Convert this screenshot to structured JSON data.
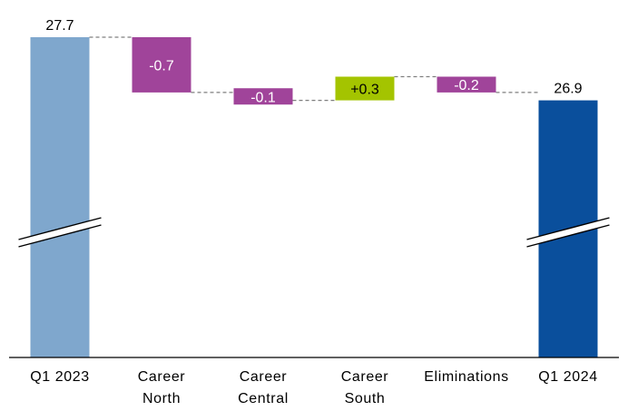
{
  "chart_data": {
    "type": "waterfall",
    "title": "",
    "xlabel": "",
    "ylabel": "",
    "axis_break": true,
    "grid": false,
    "categories": [
      [
        "Q1 2023"
      ],
      [
        "Career",
        "North"
      ],
      [
        "Career",
        "Central"
      ],
      [
        "Career",
        "South"
      ],
      [
        "Eliminations"
      ],
      [
        "Q1 2024"
      ]
    ],
    "bars": [
      {
        "kind": "total",
        "value": 27.7,
        "label": "27.7",
        "color": "#7fa7cd"
      },
      {
        "kind": "delta",
        "value": -0.7,
        "label": "-0.7",
        "color": "#a0449a"
      },
      {
        "kind": "delta",
        "value": -0.1,
        "label": "-0.1",
        "color": "#a0449a"
      },
      {
        "kind": "delta",
        "value": 0.3,
        "label": "+0.3",
        "color": "#a4c400"
      },
      {
        "kind": "delta",
        "value": -0.2,
        "label": "-0.2",
        "color": "#a0449a"
      },
      {
        "kind": "total",
        "value": 26.9,
        "label": "26.9",
        "color": "#0a4f9c"
      }
    ],
    "colors": {
      "start_total": "#7fa7cd",
      "end_total": "#0a4f9c",
      "negative": "#a0449a",
      "positive": "#a4c400",
      "connector": "#7f7f7f",
      "axis": "#000000"
    }
  }
}
